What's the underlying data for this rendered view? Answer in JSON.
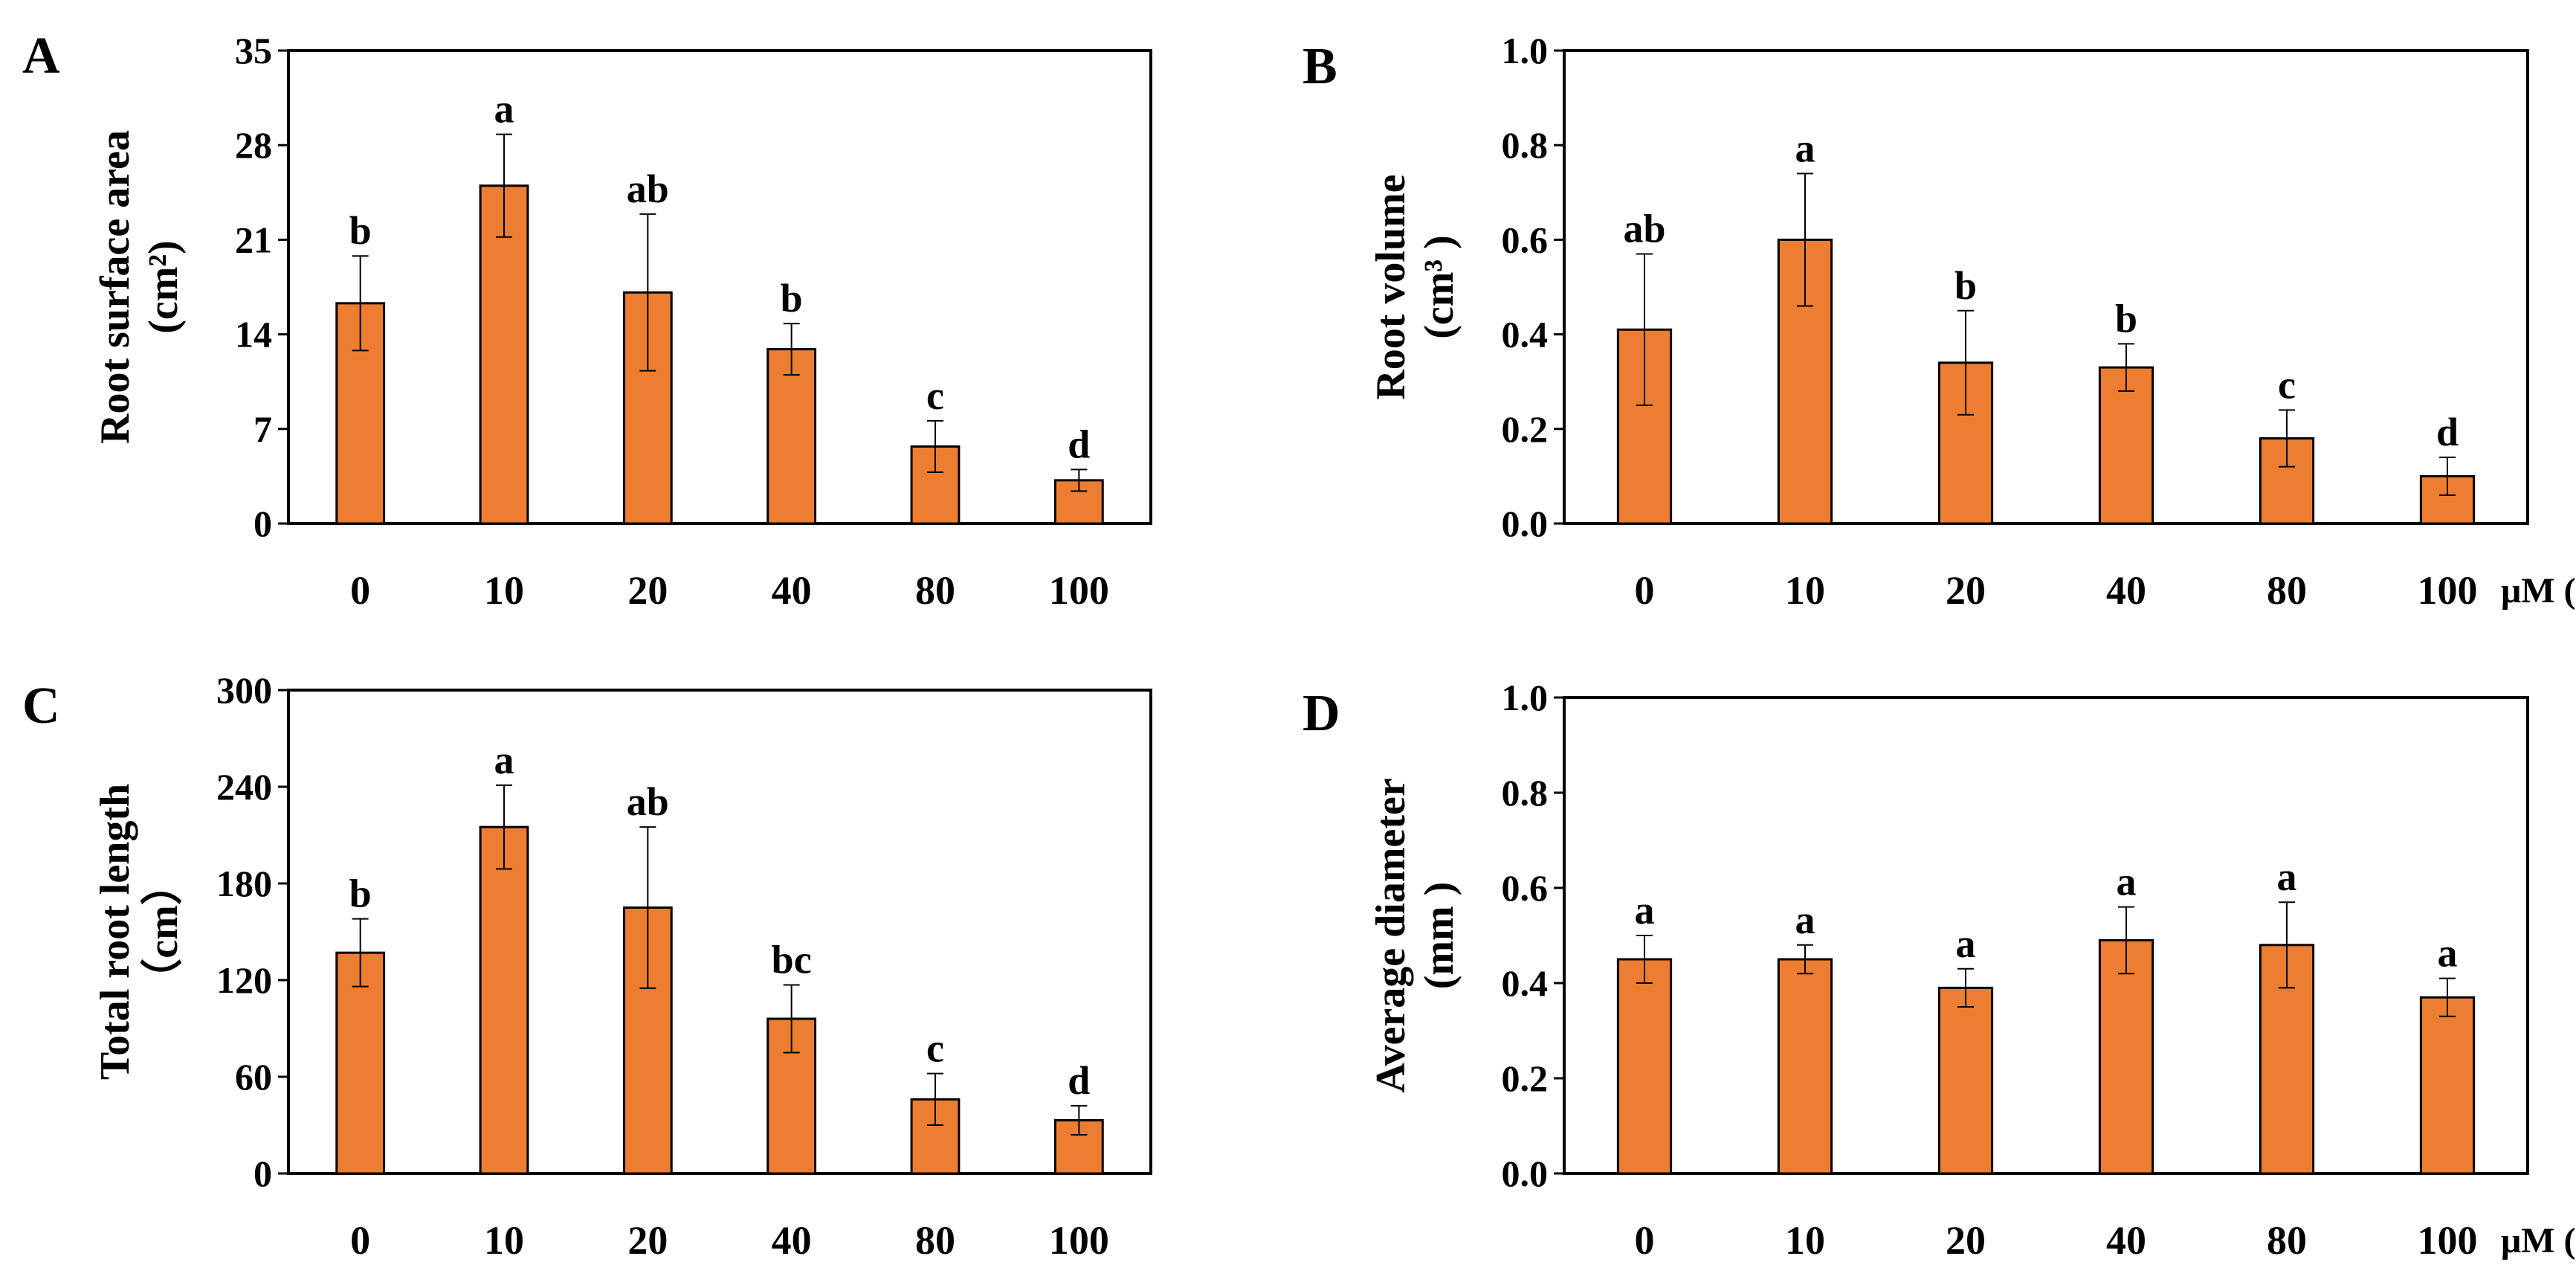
{
  "chart_data": [
    {
      "panel": "A",
      "type": "bar",
      "categories": [
        "0",
        "10",
        "20",
        "40",
        "80",
        "100"
      ],
      "values": [
        16.3,
        25.0,
        17.1,
        12.9,
        5.7,
        3.2
      ],
      "errors": [
        3.5,
        3.8,
        5.8,
        1.9,
        1.9,
        0.8
      ],
      "letters": [
        "b",
        "a",
        "ab",
        "b",
        "c",
        "d"
      ],
      "ylabel": "Root surface area",
      "yunit": "(cm²)",
      "ylim": [
        0,
        35
      ],
      "yticks": [
        "0",
        "7",
        "14",
        "21",
        "28",
        "35"
      ],
      "xunit": "",
      "grid": false
    },
    {
      "panel": "B",
      "type": "bar",
      "categories": [
        "0",
        "10",
        "20",
        "40",
        "80",
        "100"
      ],
      "values": [
        0.41,
        0.6,
        0.34,
        0.33,
        0.18,
        0.1
      ],
      "errors": [
        0.16,
        0.14,
        0.11,
        0.05,
        0.06,
        0.04
      ],
      "letters": [
        "ab",
        "a",
        "b",
        "b",
        "c",
        "d"
      ],
      "ylabel": "Root volume",
      "yunit": "(cm³ )",
      "ylim": [
        0,
        1.0
      ],
      "yticks": [
        "0.0",
        "0.2",
        "0.4",
        "0.6",
        "0.8",
        "1.0"
      ],
      "xunit": "μM (Se)",
      "grid": false
    },
    {
      "panel": "C",
      "type": "bar",
      "categories": [
        "0",
        "10",
        "20",
        "40",
        "80",
        "100"
      ],
      "values": [
        137,
        215,
        165,
        96,
        46,
        33
      ],
      "errors": [
        21,
        26,
        50,
        21,
        16,
        9
      ],
      "letters": [
        "b",
        "a",
        "ab",
        "bc",
        "c",
        "d"
      ],
      "ylabel": "Total root length",
      "yunit": "（cm）",
      "ylim": [
        0,
        300
      ],
      "yticks": [
        "0",
        "60",
        "120",
        "180",
        "240",
        "300"
      ],
      "xunit": "",
      "grid": false
    },
    {
      "panel": "D",
      "type": "bar",
      "categories": [
        "0",
        "10",
        "20",
        "40",
        "80",
        "100"
      ],
      "values": [
        0.45,
        0.45,
        0.39,
        0.49,
        0.48,
        0.37
      ],
      "errors": [
        0.05,
        0.03,
        0.04,
        0.07,
        0.09,
        0.04
      ],
      "letters": [
        "a",
        "a",
        "a",
        "a",
        "a",
        "a"
      ],
      "ylabel": "Average diameter",
      "yunit": "(mm )",
      "ylim": [
        0,
        1.0
      ],
      "yticks": [
        "0.0",
        "0.2",
        "0.4",
        "0.6",
        "0.8",
        "1.0"
      ],
      "xunit": "μM (Se)",
      "grid": false
    }
  ]
}
